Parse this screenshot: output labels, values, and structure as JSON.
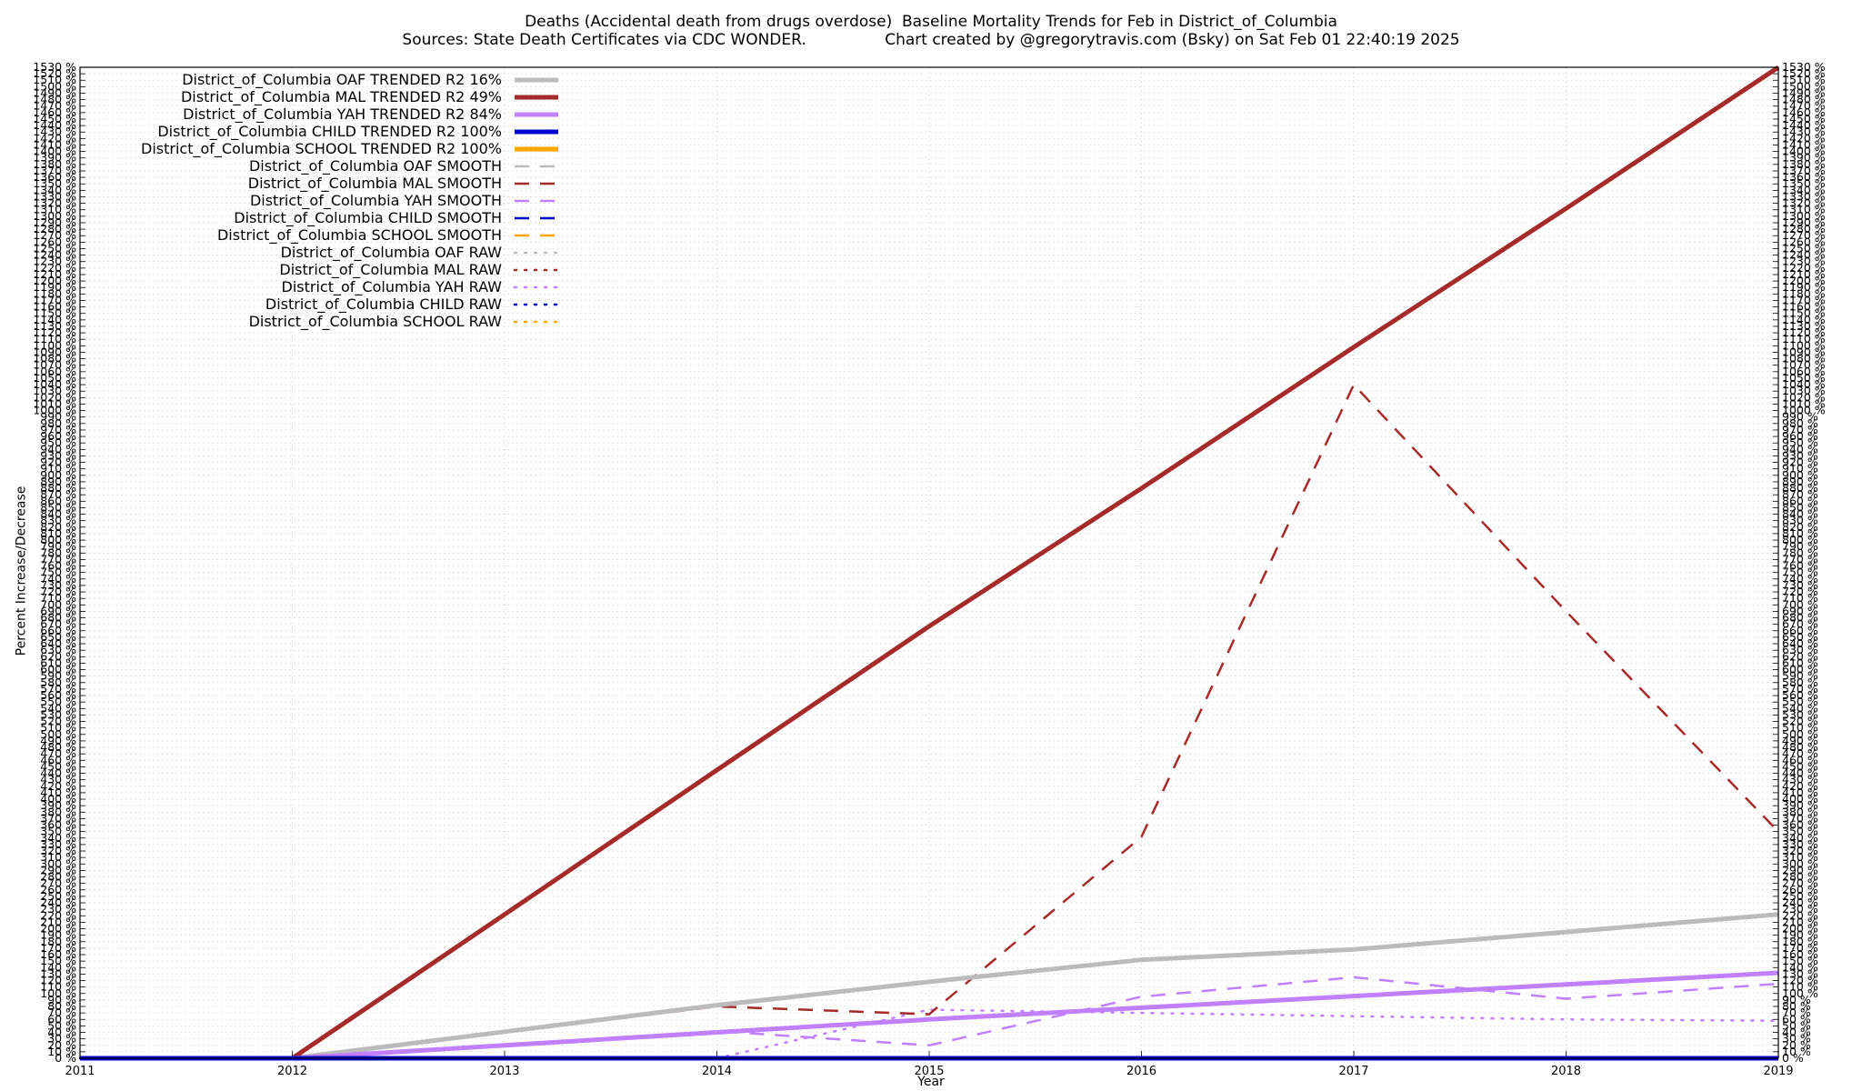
{
  "chart_data": {
    "type": "line",
    "title": "Deaths (Accidental death from drugs overdose)  Baseline Mortality Trends for Feb in District_of_Columbia",
    "subtitle": "Sources: State Death Certificates via CDC WONDER.                Chart created by @gregorytravis.com (Bsky) on Sat Feb 01 22:40:19 2025",
    "xlabel": "Year",
    "ylabel": "Percent Increase/Decrease",
    "xlim": [
      2011,
      2019
    ],
    "ylim": [
      0,
      1530
    ],
    "x_ticks": [
      "2011",
      "2012",
      "2013",
      "2014",
      "2015",
      "2016",
      "2017",
      "2018",
      "2019"
    ],
    "y_tick_step": 10,
    "y_tick_suffix": " %",
    "grid": true,
    "legend": "top-left",
    "series": [
      {
        "name": "District_of_Columbia OAF TRENDED R2  16%",
        "color": "#bbbbbb",
        "style": "solid",
        "points": [
          [
            2012,
            0
          ],
          [
            2013,
            41
          ],
          [
            2014,
            82
          ],
          [
            2015,
            118
          ],
          [
            2016,
            152
          ],
          [
            2017,
            168
          ],
          [
            2018,
            195
          ],
          [
            2019,
            222
          ]
        ]
      },
      {
        "name": "District_of_Columbia MAL TRENDED R2  49%",
        "color": "#a52a2a",
        "style": "solid",
        "points": [
          [
            2012,
            0
          ],
          [
            2013,
            222
          ],
          [
            2014,
            445
          ],
          [
            2015,
            667
          ],
          [
            2016,
            880
          ],
          [
            2017,
            1098
          ],
          [
            2018,
            1312
          ],
          [
            2019,
            1530
          ]
        ]
      },
      {
        "name": "District_of_Columbia YAH TRENDED R2  84%",
        "color": "#c080ff",
        "style": "solid",
        "points": [
          [
            2012,
            0
          ],
          [
            2013,
            20
          ],
          [
            2014,
            40
          ],
          [
            2015,
            60
          ],
          [
            2016,
            78
          ],
          [
            2017,
            96
          ],
          [
            2018,
            114
          ],
          [
            2019,
            132
          ]
        ]
      },
      {
        "name": "District_of_Columbia CHILD TRENDED R2 100%",
        "color": "#0000cc",
        "style": "solid",
        "points": [
          [
            2011,
            0
          ],
          [
            2019,
            0
          ]
        ]
      },
      {
        "name": "District_of_Columbia SCHOOL TRENDED R2 100%",
        "color": "#ffa500",
        "style": "solid",
        "points": []
      },
      {
        "name": "District_of_Columbia OAF SMOOTH",
        "color": "#bbbbbb",
        "style": "dashed",
        "points": [
          [
            2012,
            0
          ],
          [
            2013,
            41
          ],
          [
            2014,
            82
          ],
          [
            2015,
            118
          ],
          [
            2016,
            152
          ],
          [
            2017,
            168
          ],
          [
            2018,
            195
          ],
          [
            2019,
            222
          ]
        ]
      },
      {
        "name": "District_of_Columbia MAL SMOOTH",
        "color": "#a52a2a",
        "style": "dashed",
        "points": [
          [
            2012,
            0
          ],
          [
            2013,
            40
          ],
          [
            2014,
            80
          ],
          [
            2015,
            68
          ],
          [
            2016,
            342
          ],
          [
            2017,
            1040
          ],
          [
            2018,
            690
          ],
          [
            2019,
            350
          ]
        ]
      },
      {
        "name": "District_of_Columbia YAH SMOOTH",
        "color": "#c080ff",
        "style": "dashed",
        "points": [
          [
            2012,
            0
          ],
          [
            2013,
            20
          ],
          [
            2014,
            42
          ],
          [
            2015,
            20
          ],
          [
            2016,
            95
          ],
          [
            2017,
            125
          ],
          [
            2018,
            92
          ],
          [
            2019,
            115
          ]
        ]
      },
      {
        "name": "District_of_Columbia CHILD SMOOTH",
        "color": "#0000cc",
        "style": "dashed",
        "points": [
          [
            2011,
            0
          ],
          [
            2019,
            0
          ]
        ]
      },
      {
        "name": "District_of_Columbia SCHOOL SMOOTH",
        "color": "#ffa500",
        "style": "dashed",
        "points": []
      },
      {
        "name": "District_of_Columbia OAF RAW",
        "color": "#bbbbbb",
        "style": "dotted",
        "points": []
      },
      {
        "name": "District_of_Columbia MAL RAW",
        "color": "#a52a2a",
        "style": "dotted",
        "points": []
      },
      {
        "name": "District_of_Columbia YAH RAW",
        "color": "#c080ff",
        "style": "dotted",
        "points": [
          [
            2014,
            0
          ],
          [
            2015,
            75
          ],
          [
            2016,
            70
          ],
          [
            2017,
            65
          ],
          [
            2018,
            60
          ],
          [
            2019,
            58
          ]
        ]
      },
      {
        "name": "District_of_Columbia CHILD RAW",
        "color": "#0000cc",
        "style": "dotted",
        "points": [
          [
            2011,
            0
          ],
          [
            2019,
            0
          ]
        ]
      },
      {
        "name": "District_of_Columbia SCHOOL RAW",
        "color": "#ffa500",
        "style": "dotted",
        "points": []
      }
    ]
  }
}
